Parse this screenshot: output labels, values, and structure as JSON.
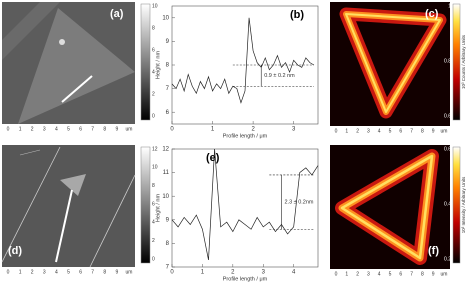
{
  "figure": {
    "image_ticks": [
      "0",
      "1",
      "2",
      "3",
      "4",
      "5",
      "6",
      "7",
      "8",
      "9",
      "um"
    ],
    "panels": [
      {
        "label": "(a)",
        "colorbar_ticks": [
          "0",
          "2",
          "4",
          "6",
          "8",
          "10"
        ]
      },
      {
        "label": "(b)"
      },
      {
        "label": "(c)",
        "colorbar_ticks": [
          "0.6",
          "0.8",
          "1"
        ],
        "colorbar_label": "10³ Counts / Arbitrary Units"
      },
      {
        "label": "(d)",
        "colorbar_ticks": [
          "0",
          "2",
          "4",
          "6",
          "8",
          "10",
          "12"
        ]
      },
      {
        "label": "(e)"
      },
      {
        "label": "(f)",
        "colorbar_ticks": [
          "0.2",
          "0.4",
          "0.6"
        ],
        "colorbar_label": "10³ Intensity / Arbitrary Units"
      }
    ]
  },
  "chart_data": [
    {
      "type": "line",
      "x_label": "Profile length / μm",
      "y_label": "Height / nm",
      "annotation": "0.9 ± 0.2 nm",
      "x": [
        0,
        0.1,
        0.2,
        0.3,
        0.4,
        0.5,
        0.6,
        0.7,
        0.8,
        0.9,
        1.0,
        1.1,
        1.2,
        1.3,
        1.4,
        1.5,
        1.6,
        1.7,
        1.8,
        1.9,
        2.0,
        2.1,
        2.2,
        2.3,
        2.4,
        2.5,
        2.6,
        2.7,
        2.8,
        2.9,
        3.0,
        3.1,
        3.2,
        3.3,
        3.4,
        3.5
      ],
      "values": [
        7.2,
        7.0,
        7.4,
        6.9,
        7.6,
        7.1,
        6.8,
        7.3,
        7.0,
        7.5,
        6.9,
        7.2,
        7.0,
        7.4,
        6.8,
        7.1,
        7.0,
        6.4,
        6.9,
        10.0,
        8.6,
        8.1,
        7.9,
        8.3,
        7.8,
        8.0,
        8.4,
        7.9,
        8.1,
        7.7,
        8.2,
        8.0,
        7.9,
        8.3,
        8.1,
        8.0
      ],
      "color": "#222222",
      "reference_lines": [
        7.1,
        8.0
      ],
      "xlim": [
        0,
        3.6
      ],
      "ylim": [
        5.5,
        10.5
      ],
      "xticks": [
        0,
        1,
        2,
        3
      ],
      "yticks": [
        6,
        7,
        8,
        9,
        10
      ]
    },
    {
      "type": "line",
      "x_label": "Profile length / μm",
      "y_label": "Height / nm",
      "annotation": "2.3 ± 0.2nm",
      "x": [
        0,
        0.2,
        0.4,
        0.6,
        0.8,
        1.0,
        1.2,
        1.4,
        1.6,
        1.8,
        2.0,
        2.2,
        2.4,
        2.6,
        2.8,
        3.0,
        3.2,
        3.4,
        3.6,
        3.8,
        4.0,
        4.2,
        4.4,
        4.6,
        4.8
      ],
      "values": [
        9.0,
        8.7,
        9.1,
        8.8,
        9.2,
        8.6,
        7.3,
        12.0,
        8.7,
        8.9,
        8.5,
        9.0,
        8.8,
        8.6,
        9.1,
        8.7,
        8.9,
        8.5,
        8.8,
        8.4,
        8.7,
        11.0,
        11.2,
        10.9,
        11.3
      ],
      "color": "#222222",
      "reference_lines": [
        8.6,
        10.9
      ],
      "xlim": [
        0,
        4.8
      ],
      "ylim": [
        7,
        12
      ],
      "xticks": [
        0,
        1,
        2,
        3,
        4
      ],
      "yticks": [
        7,
        8,
        9,
        10,
        11,
        12
      ]
    }
  ]
}
